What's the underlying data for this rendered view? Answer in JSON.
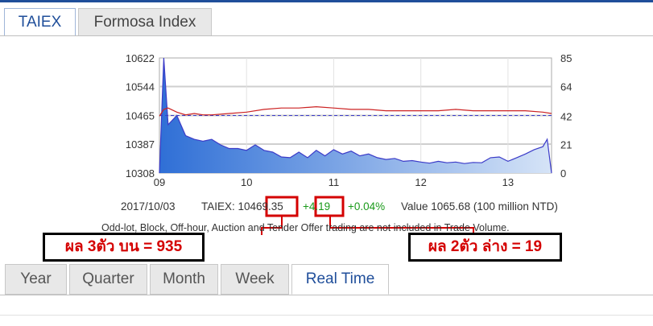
{
  "index_tabs": [
    {
      "label": "TAIEX",
      "active": true
    },
    {
      "label": "Formosa Index",
      "active": false
    }
  ],
  "chart_data": {
    "type": "area",
    "title": "",
    "x_ticks": [
      "09",
      "10",
      "11",
      "12",
      "13"
    ],
    "y_left_ticks": [
      "10622",
      "10544",
      "10465",
      "10387",
      "10308"
    ],
    "y_right_ticks": [
      "85",
      "64",
      "42",
      "21",
      "0"
    ],
    "ylim_left": [
      10308,
      10622
    ],
    "ylim_right": [
      0,
      85
    ],
    "reference_line": 10465,
    "series": [
      {
        "kind": "price",
        "color": "#3b3bc8",
        "x": [
          9.0,
          9.05,
          9.1,
          9.2,
          9.3,
          9.4,
          9.5,
          9.6,
          9.7,
          9.8,
          9.9,
          10.0,
          10.1,
          10.2,
          10.3,
          10.4,
          10.5,
          10.6,
          10.7,
          10.8,
          10.9,
          11.0,
          11.1,
          11.2,
          11.3,
          11.4,
          11.5,
          11.6,
          11.7,
          11.8,
          11.9,
          12.0,
          12.1,
          12.2,
          12.3,
          12.4,
          12.5,
          12.6,
          12.7,
          12.8,
          12.9,
          13.0,
          13.1,
          13.2,
          13.3,
          13.4,
          13.45,
          13.5
        ],
        "y": [
          10308,
          10622,
          10440,
          10465,
          10410,
          10400,
          10395,
          10400,
          10385,
          10375,
          10375,
          10370,
          10385,
          10370,
          10365,
          10352,
          10350,
          10365,
          10350,
          10370,
          10355,
          10372,
          10360,
          10368,
          10355,
          10360,
          10350,
          10345,
          10348,
          10340,
          10342,
          10338,
          10335,
          10340,
          10336,
          10338,
          10334,
          10337,
          10336,
          10350,
          10352,
          10340,
          10350,
          10360,
          10372,
          10380,
          10400,
          10308
        ]
      },
      {
        "kind": "volume",
        "color": "#cc2222",
        "x": [
          9.0,
          9.05,
          9.1,
          9.2,
          9.3,
          9.4,
          9.5,
          9.6,
          9.8,
          10.0,
          10.2,
          10.4,
          10.6,
          10.8,
          11.0,
          11.2,
          11.4,
          11.6,
          11.8,
          12.0,
          12.2,
          12.4,
          12.6,
          12.8,
          13.0,
          13.2,
          13.4,
          13.5
        ],
        "y": [
          42,
          47,
          48,
          45,
          43,
          44,
          43,
          43,
          44,
          45,
          47,
          48,
          48,
          49,
          48,
          47,
          47,
          46,
          46,
          46,
          46,
          47,
          46,
          46,
          46,
          46,
          45,
          44
        ]
      }
    ]
  },
  "info": {
    "date": "2017/10/03",
    "index_text": "TAIEX: 10469.35",
    "change": "+4.19",
    "pct": "+0.04%",
    "value": "Value 1065.68 (100 million NTD)"
  },
  "note": "Odd-lot, Block, Off-hour, Auction and Tender Offer trading are not included in Trade Volume.",
  "annotations": {
    "left": "ผล 3ตัว บน = 935",
    "right": "ผล 2ตัว ล่าง = 19",
    "color": "#d40000"
  },
  "period_tabs": [
    {
      "label": "Year",
      "active": false
    },
    {
      "label": "Quarter",
      "active": false
    },
    {
      "label": "Month",
      "active": false
    },
    {
      "label": "Week",
      "active": false
    },
    {
      "label": "Real Time",
      "active": true
    }
  ]
}
